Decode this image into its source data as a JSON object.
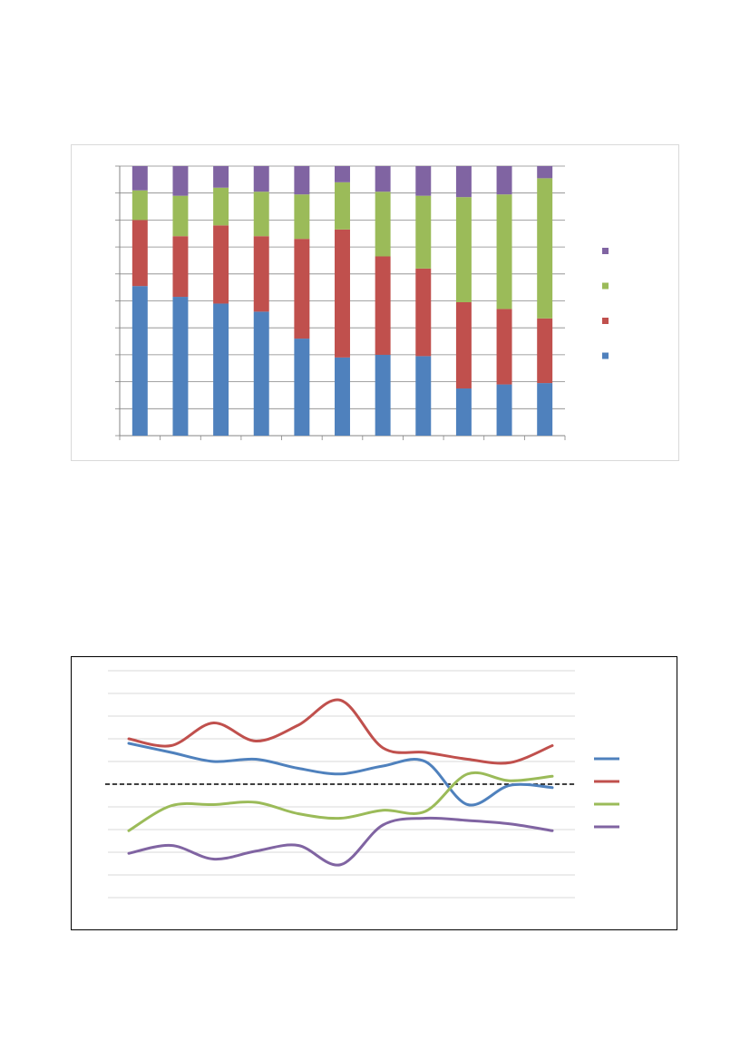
{
  "chart_data": [
    {
      "type": "bar",
      "stacked": true,
      "percent_stacked": true,
      "categories": [
        "",
        "",
        "",
        "",
        "",
        "",
        "",
        "",
        "",
        "",
        ""
      ],
      "ylim": [
        0,
        100
      ],
      "grid": true,
      "legend": "right",
      "series": [
        {
          "color": "#4f81bd",
          "values": [
            55.5,
            51.5,
            49,
            46,
            36,
            29,
            30,
            29.5,
            17.5,
            19,
            19.5
          ]
        },
        {
          "color": "#c0504d",
          "values": [
            24.5,
            22.5,
            29,
            28,
            37,
            47.5,
            36.5,
            32.5,
            32,
            28,
            24
          ]
        },
        {
          "color": "#9bbb59",
          "values": [
            11,
            15,
            14,
            16.5,
            16.5,
            17.5,
            24,
            27,
            39,
            42.5,
            52
          ]
        },
        {
          "color": "#8064a2",
          "values": [
            9,
            11,
            8,
            9.5,
            10.5,
            6,
            9.5,
            11,
            11.5,
            10.5,
            4.5
          ]
        }
      ]
    },
    {
      "type": "line",
      "smooth": true,
      "x": [
        1,
        2,
        3,
        4,
        5,
        6,
        7,
        8,
        9,
        10,
        11
      ],
      "ylim": [
        -5,
        5
      ],
      "grid": true,
      "legend": "right",
      "reference_line": {
        "value": 0,
        "style": "dashed",
        "color": "#000000"
      },
      "series": [
        {
          "color": "#4f81bd",
          "values": [
            1.8,
            1.4,
            1.0,
            1.1,
            0.7,
            0.45,
            0.8,
            1.0,
            -0.9,
            -0.05,
            -0.15
          ]
        },
        {
          "color": "#c0504d",
          "values": [
            2.0,
            1.7,
            2.7,
            1.9,
            2.6,
            3.7,
            1.6,
            1.4,
            1.1,
            0.95,
            1.7
          ]
        },
        {
          "color": "#9bbb59",
          "values": [
            -2.05,
            -0.95,
            -0.9,
            -0.8,
            -1.3,
            -1.5,
            -1.15,
            -1.2,
            0.45,
            0.15,
            0.35
          ]
        },
        {
          "color": "#8064a2",
          "values": [
            -3.05,
            -2.7,
            -3.3,
            -2.95,
            -2.7,
            -3.55,
            -1.8,
            -1.5,
            -1.6,
            -1.75,
            -2.05
          ]
        }
      ]
    }
  ]
}
